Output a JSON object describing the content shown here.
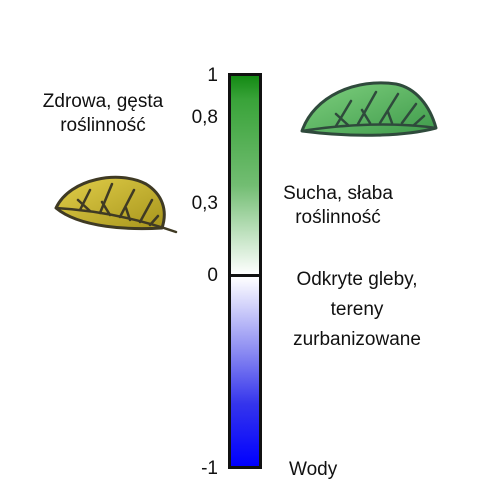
{
  "scale": {
    "min": -1,
    "max": 1,
    "ticks": [
      {
        "value": 1,
        "label": "1"
      },
      {
        "value": 0.8,
        "label": "0,8"
      },
      {
        "value": 0.3,
        "label": "0,3"
      },
      {
        "value": 0,
        "label": "0"
      },
      {
        "value": -1,
        "label": "-1"
      }
    ]
  },
  "categories": {
    "healthy": "Zdrowa, gęsta roślinność",
    "sparse": "Sucha, słaba roślinność",
    "bare": "Odkryte gleby, tereny zurbanizowane",
    "water": "Wody"
  },
  "colors": {
    "top": "#148a14",
    "middle": "#ffffff",
    "bottom": "#0000ff",
    "leaf_green": "#5cb85c",
    "leaf_yellow": "#c9b52b"
  },
  "icons": {
    "green_leaf": "green-leaf-icon",
    "yellow_leaf": "yellow-leaf-icon"
  }
}
